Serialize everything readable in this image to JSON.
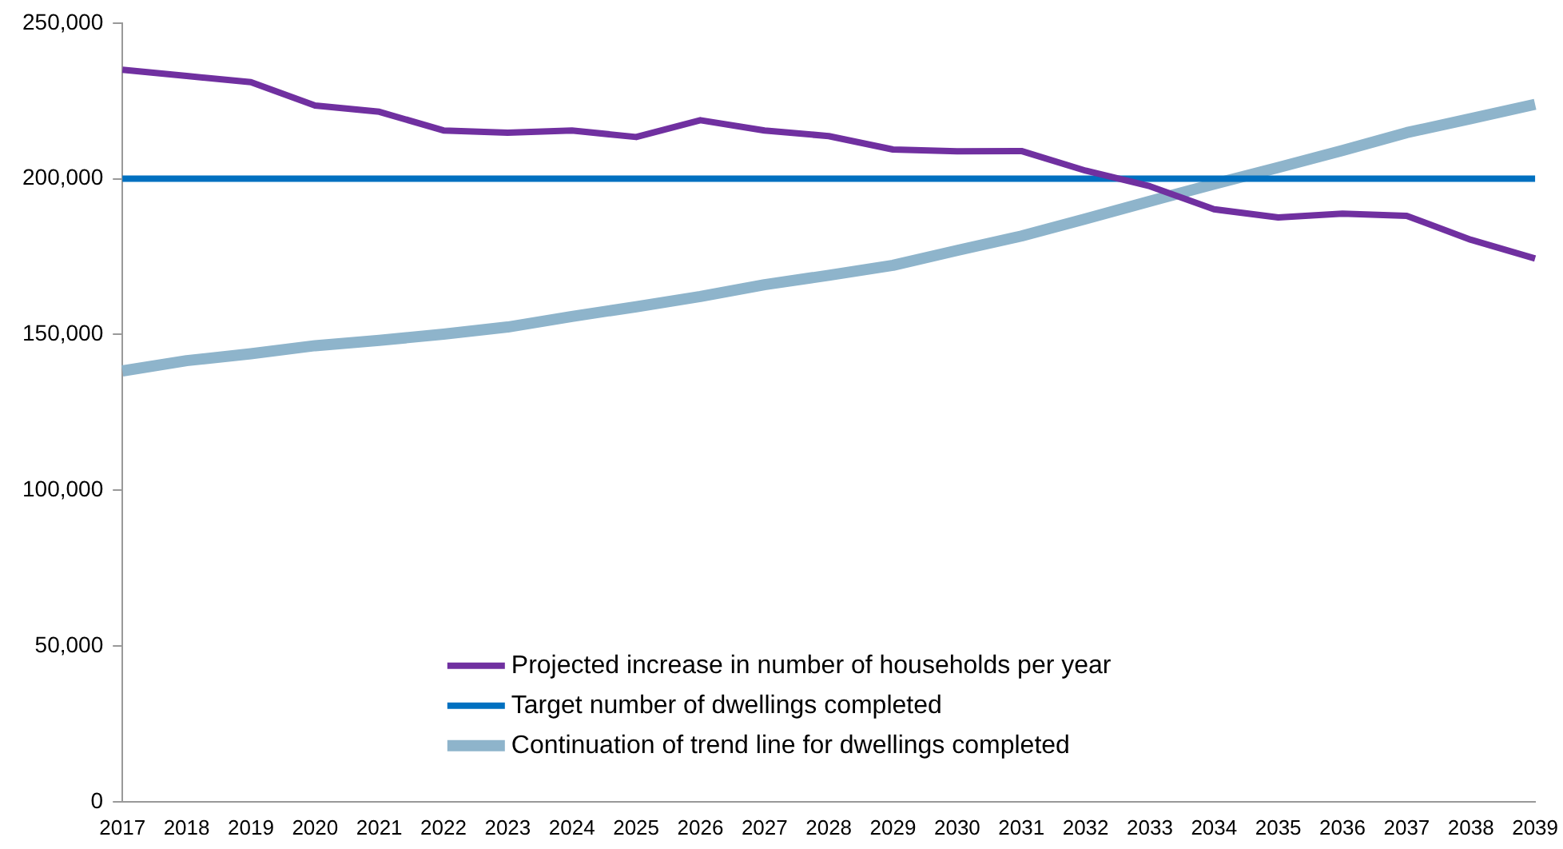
{
  "chart_data": {
    "type": "line",
    "categories": [
      "2017",
      "2018",
      "2019",
      "2020",
      "2021",
      "2022",
      "2023",
      "2024",
      "2025",
      "2026",
      "2027",
      "2028",
      "2029",
      "2030",
      "2031",
      "2032",
      "2033",
      "2034",
      "2035",
      "2036",
      "2037",
      "2038",
      "2039"
    ],
    "series": [
      {
        "name": "Projected increase in number of households per year",
        "color": "#7030a0",
        "values": [
          235000,
          233000,
          231000,
          223500,
          221500,
          215500,
          214800,
          215500,
          213400,
          218800,
          215500,
          213700,
          209400,
          208800,
          208900,
          202600,
          197600,
          190200,
          187600,
          188800,
          188100,
          180400,
          174400
        ]
      },
      {
        "name": "Target number of dwellings completed",
        "color": "#0070c0",
        "values": [
          200000,
          200000,
          200000,
          200000,
          200000,
          200000,
          200000,
          200000,
          200000,
          200000,
          200000,
          200000,
          200000,
          200000,
          200000,
          200000,
          200000,
          200000,
          200000,
          200000,
          200000,
          200000,
          200000
        ]
      },
      {
        "name": "Continuation of trend line for dwellings completed",
        "color": "#8eb4cb",
        "values": [
          138300,
          141600,
          143800,
          146400,
          148100,
          150100,
          152400,
          155800,
          158900,
          162200,
          166000,
          169000,
          172200,
          177000,
          181600,
          187100,
          192800,
          198300,
          203600,
          209100,
          214800,
          219300,
          223900
        ]
      }
    ],
    "ylim": [
      0,
      250000
    ],
    "yticks": [
      0,
      {
        "value": 50000,
        "label": "50,000"
      },
      {
        "value": 100000,
        "label": "100,000"
      },
      {
        "value": 150000,
        "label": "150,000"
      },
      {
        "value": 200000,
        "label": "200,000"
      },
      {
        "value": 250000,
        "label": "250,000"
      }
    ],
    "grid": false,
    "legend": "bottom",
    "marker": "none",
    "line_style": "solid"
  }
}
